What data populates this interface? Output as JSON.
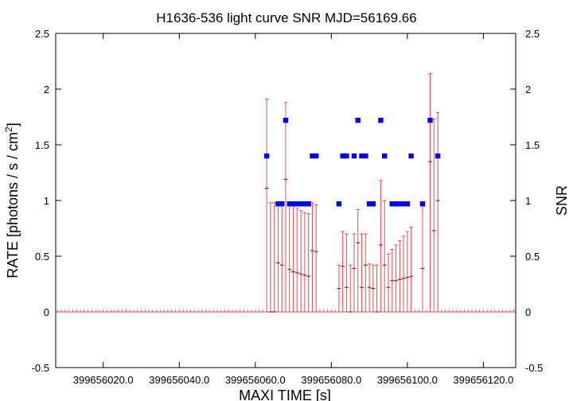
{
  "chart_data": {
    "type": "scatter",
    "title": "H1636-536 light curve  SNR MJD=56169.66",
    "xlabel": "MAXI TIME [s]",
    "ylabel": "RATE [photons / s / cm2]",
    "ylabel_main": "RATE [photons / s / cm",
    "ylabel_sup": "2",
    "ylabel_tail": "]",
    "y2label": "SNR",
    "xlim": [
      399656007.5,
      399656128.5
    ],
    "ylim": [
      -0.5,
      2.5
    ],
    "y2lim": [
      -0.5,
      2.5
    ],
    "xticks": [
      {
        "value": 399656020,
        "label": "399656020.0"
      },
      {
        "value": 399656040,
        "label": "399656040.0"
      },
      {
        "value": 399656060,
        "label": "399656060.0"
      },
      {
        "value": 399656080,
        "label": "399656080.0"
      },
      {
        "value": 399656100,
        "label": "399656100.0"
      },
      {
        "value": 399656120,
        "label": "399656120.0"
      }
    ],
    "yticks": [
      {
        "value": -0.5,
        "label": "-0.5"
      },
      {
        "value": 0,
        "label": "0"
      },
      {
        "value": 0.5,
        "label": "0.5"
      },
      {
        "value": 1,
        "label": "1"
      },
      {
        "value": 1.5,
        "label": "1.5"
      },
      {
        "value": 2,
        "label": "2"
      },
      {
        "value": 2.5,
        "label": "2.5"
      }
    ],
    "y2ticks": [
      {
        "value": -0.5,
        "label": "-0.5"
      },
      {
        "value": 0,
        "label": "0"
      },
      {
        "value": 0.5,
        "label": "0.5"
      },
      {
        "value": 1,
        "label": "1"
      },
      {
        "value": 1.5,
        "label": "1.5"
      },
      {
        "value": 2,
        "label": "2"
      },
      {
        "value": 2.5,
        "label": "2.5"
      }
    ],
    "grid": false,
    "legend": "none",
    "series": [
      {
        "kind": "rate-errorbars",
        "color": "#e05050",
        "zero_x_start": 399656008,
        "zero_x_end": 399656128,
        "points": [
          {
            "x": 399656063,
            "y": 1.11,
            "lo": 0.0,
            "hi": 1.91
          },
          {
            "x": 399656064,
            "y": 0.0,
            "lo": 0.0,
            "hi": 0.98
          },
          {
            "x": 399656065,
            "y": 0.0,
            "lo": 0.0,
            "hi": 0.98
          },
          {
            "x": 399656066,
            "y": 0.44,
            "lo": 0.0,
            "hi": 0.98
          },
          {
            "x": 399656067,
            "y": 0.42,
            "lo": 0.0,
            "hi": 0.98
          },
          {
            "x": 399656068,
            "y": 1.19,
            "lo": 0.0,
            "hi": 1.88
          },
          {
            "x": 399656069,
            "y": 0.38,
            "lo": 0.0,
            "hi": 0.98
          },
          {
            "x": 399656070,
            "y": 0.36,
            "lo": 0.0,
            "hi": 0.96
          },
          {
            "x": 399656071,
            "y": 0.35,
            "lo": 0.0,
            "hi": 0.93
          },
          {
            "x": 399656072,
            "y": 0.34,
            "lo": 0.0,
            "hi": 0.91
          },
          {
            "x": 399656073,
            "y": 0.33,
            "lo": 0.0,
            "hi": 0.89
          },
          {
            "x": 399656074,
            "y": 0.32,
            "lo": 0.0,
            "hi": 0.88
          },
          {
            "x": 399656075,
            "y": 0.55,
            "lo": 0.0,
            "hi": 0.98
          },
          {
            "x": 399656076,
            "y": 0.54,
            "lo": 0.0,
            "hi": 0.96
          },
          {
            "x": 399656082,
            "y": 0.21,
            "lo": 0.0,
            "hi": 0.42
          },
          {
            "x": 399656083,
            "y": 0.41,
            "lo": 0.0,
            "hi": 0.72
          },
          {
            "x": 399656084,
            "y": 0.22,
            "lo": 0.0,
            "hi": 0.7
          },
          {
            "x": 399656085,
            "y": 0.0,
            "lo": 0.0,
            "hi": 0.42
          },
          {
            "x": 399656086,
            "y": 0.39,
            "lo": 0.0,
            "hi": 0.7
          },
          {
            "x": 399656087,
            "y": 0.62,
            "lo": 0.0,
            "hi": 0.92
          },
          {
            "x": 399656088,
            "y": 0.22,
            "lo": 0.0,
            "hi": 0.7
          },
          {
            "x": 399656089,
            "y": 0.42,
            "lo": 0.0,
            "hi": 0.7
          },
          {
            "x": 399656090,
            "y": 0.22,
            "lo": 0.0,
            "hi": 0.43
          },
          {
            "x": 399656091,
            "y": 0.21,
            "lo": 0.0,
            "hi": 0.42
          },
          {
            "x": 399656092,
            "y": 0.0,
            "lo": 0.0,
            "hi": 0.42
          },
          {
            "x": 399656093,
            "y": 0.6,
            "lo": 0.0,
            "hi": 1.18
          },
          {
            "x": 399656094,
            "y": 0.42,
            "lo": 0.0,
            "hi": 1.0
          },
          {
            "x": 399656095,
            "y": 0.22,
            "lo": 0.0,
            "hi": 0.52
          },
          {
            "x": 399656096,
            "y": 0.28,
            "lo": 0.0,
            "hi": 0.56
          },
          {
            "x": 399656097,
            "y": 0.28,
            "lo": 0.0,
            "hi": 0.6
          },
          {
            "x": 399656098,
            "y": 0.29,
            "lo": 0.0,
            "hi": 0.64
          },
          {
            "x": 399656099,
            "y": 0.3,
            "lo": 0.0,
            "hi": 0.68
          },
          {
            "x": 399656100,
            "y": 0.31,
            "lo": 0.0,
            "hi": 0.72
          },
          {
            "x": 399656101,
            "y": 0.32,
            "lo": 0.0,
            "hi": 0.76
          },
          {
            "x": 399656104,
            "y": 0.39,
            "lo": 0.0,
            "hi": 0.98
          },
          {
            "x": 399656106,
            "y": 1.35,
            "lo": 0.0,
            "hi": 2.14
          },
          {
            "x": 399656107,
            "y": 0.73,
            "lo": 0.0,
            "hi": 1.73
          },
          {
            "x": 399656108,
            "y": 1.0,
            "lo": 0.0,
            "hi": 1.79
          }
        ]
      },
      {
        "kind": "snr-points",
        "color": "#0000ee",
        "points": [
          {
            "x": 399656063,
            "y": 1.4
          },
          {
            "x": 399656066,
            "y": 0.97
          },
          {
            "x": 399656067,
            "y": 0.97
          },
          {
            "x": 399656068,
            "y": 1.72
          },
          {
            "x": 399656069,
            "y": 0.97
          },
          {
            "x": 399656070,
            "y": 0.97
          },
          {
            "x": 399656071,
            "y": 0.97
          },
          {
            "x": 399656072,
            "y": 0.97
          },
          {
            "x": 399656073,
            "y": 0.97
          },
          {
            "x": 399656074,
            "y": 0.97
          },
          {
            "x": 399656075,
            "y": 1.4
          },
          {
            "x": 399656076,
            "y": 1.4
          },
          {
            "x": 399656082,
            "y": 0.97
          },
          {
            "x": 399656083,
            "y": 1.4
          },
          {
            "x": 399656084,
            "y": 1.4
          },
          {
            "x": 399656086,
            "y": 1.4
          },
          {
            "x": 399656087,
            "y": 1.72
          },
          {
            "x": 399656088,
            "y": 1.4
          },
          {
            "x": 399656089,
            "y": 1.4
          },
          {
            "x": 399656090,
            "y": 0.97
          },
          {
            "x": 399656091,
            "y": 0.97
          },
          {
            "x": 399656093,
            "y": 1.72
          },
          {
            "x": 399656094,
            "y": 1.4
          },
          {
            "x": 399656096,
            "y": 0.97
          },
          {
            "x": 399656097,
            "y": 0.97
          },
          {
            "x": 399656098,
            "y": 0.97
          },
          {
            "x": 399656099,
            "y": 0.97
          },
          {
            "x": 399656100,
            "y": 0.97
          },
          {
            "x": 399656101,
            "y": 1.4
          },
          {
            "x": 399656104,
            "y": 0.97
          },
          {
            "x": 399656106,
            "y": 1.72
          },
          {
            "x": 399656108,
            "y": 1.4
          }
        ]
      }
    ]
  }
}
